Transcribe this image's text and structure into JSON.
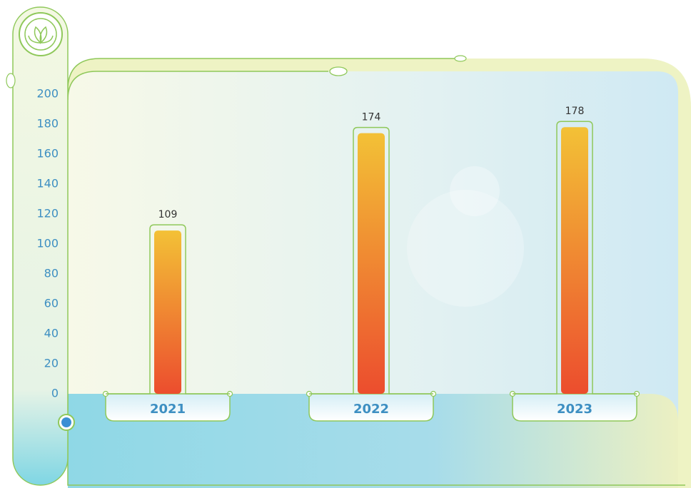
{
  "chart_data": {
    "type": "bar",
    "categories": [
      "2021",
      "2022",
      "2023"
    ],
    "values": [
      109,
      174,
      178
    ],
    "gradient": [
      "#f3c136",
      "#ec4d2e"
    ],
    "ylim": [
      0,
      200
    ],
    "yticks": [
      0,
      20,
      40,
      60,
      80,
      100,
      120,
      140,
      160,
      180,
      200
    ]
  }
}
